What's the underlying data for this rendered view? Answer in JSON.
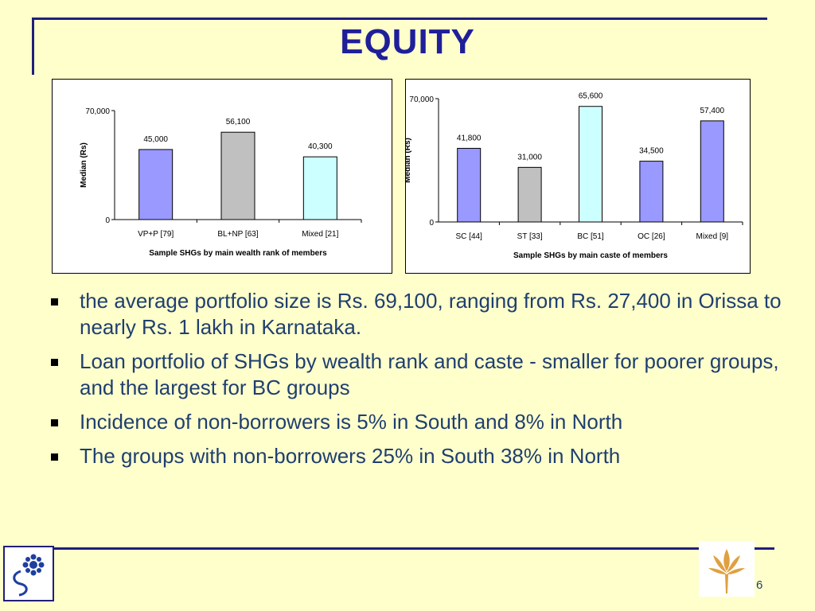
{
  "slide": {
    "title": "EQUITY",
    "page_number": "6"
  },
  "bullets": [
    "the average portfolio size is Rs. 69,100, ranging from Rs. 27,400 in Orissa to nearly Rs. 1 lakh in  Karnataka.",
    "Loan portfolio of SHGs by wealth rank and caste - smaller for poorer groups, and the largest for BC groups",
    "Incidence of non-borrowers is 5% in South and 8% in North",
    "The groups with non-borrowers 25% in South 38% in North"
  ],
  "chart_data": [
    {
      "type": "bar",
      "categories": [
        "VP+P [79]",
        "BL+NP [63]",
        "Mixed [21]"
      ],
      "values": [
        45000,
        56100,
        40300
      ],
      "data_labels": [
        "45,000",
        "56,100",
        "40,300"
      ],
      "colors": [
        "#9999FF",
        "#C0C0C0",
        "#CCFFFF"
      ],
      "xlabel": "Sample SHGs by main wealth rank of members",
      "ylabel": "Median (Rs)",
      "ylim": [
        0,
        70000
      ],
      "yticks": [
        "0",
        "70,000"
      ],
      "grid": false
    },
    {
      "type": "bar",
      "categories": [
        "SC [44]",
        "ST [33]",
        "BC [51]",
        "OC [26]",
        "Mixed [9]"
      ],
      "values": [
        41800,
        31000,
        65600,
        34500,
        57400
      ],
      "data_labels": [
        "41,800",
        "31,000",
        "65,600",
        "34,500",
        "57,400"
      ],
      "colors": [
        "#9999FF",
        "#C0C0C0",
        "#CCFFFF",
        "#9999FF",
        "#9999FF"
      ],
      "xlabel": "Sample SHGs by main caste of members",
      "ylabel": "Median (Rs)",
      "ylim": [
        0,
        70000
      ],
      "yticks": [
        "0",
        "70,000"
      ],
      "grid": false
    }
  ]
}
